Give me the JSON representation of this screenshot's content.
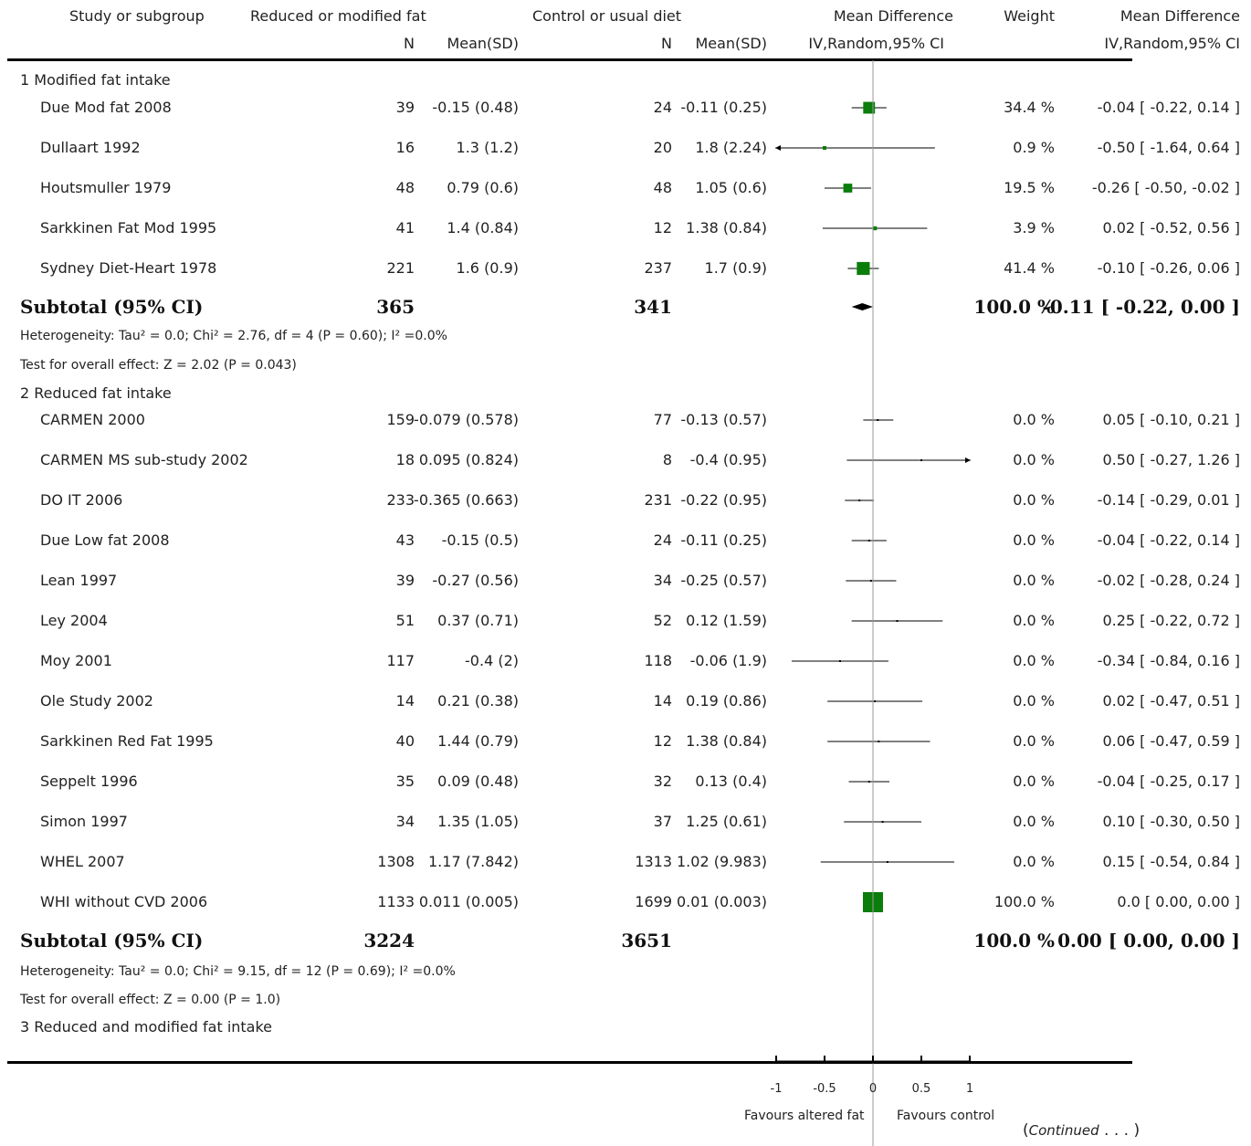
{
  "headers": {
    "study": "Study or subgroup",
    "treatment": "Reduced or modified fat",
    "control": "Control or usual diet",
    "md_plot": "Mean Difference",
    "weight": "Weight",
    "md_text": "Mean Difference",
    "n1": "N",
    "mean1": "Mean(SD)",
    "n2": "N",
    "mean2": "Mean(SD)",
    "method_plot": "IV,Random,95% CI",
    "method_text": "IV,Random,95% CI"
  },
  "groups": [
    {
      "title": "1 Modified fat intake",
      "studies": [
        {
          "name": "Due Mod fat 2008",
          "n1": "39",
          "m1": "-0.15 (0.48)",
          "n2": "24",
          "m2": "-0.11 (0.25)",
          "weight": "34.4 %",
          "ci_text": "-0.04 [ -0.22, 0.14 ]"
        },
        {
          "name": "Dullaart 1992",
          "n1": "16",
          "m1": "1.3 (1.2)",
          "n2": "20",
          "m2": "1.8 (2.24)",
          "weight": "0.9 %",
          "ci_text": "-0.50 [ -1.64, 0.64 ]"
        },
        {
          "name": "Houtsmuller 1979",
          "n1": "48",
          "m1": "0.79 (0.6)",
          "n2": "48",
          "m2": "1.05 (0.6)",
          "weight": "19.5 %",
          "ci_text": "-0.26 [ -0.50, -0.02 ]"
        },
        {
          "name": "Sarkkinen Fat Mod 1995",
          "n1": "41",
          "m1": "1.4 (0.84)",
          "n2": "12",
          "m2": "1.38 (0.84)",
          "weight": "3.9 %",
          "ci_text": "0.02 [ -0.52, 0.56 ]"
        },
        {
          "name": "Sydney Diet-Heart 1978",
          "n1": "221",
          "m1": "1.6 (0.9)",
          "n2": "237",
          "m2": "1.7 (0.9)",
          "weight": "41.4 %",
          "ci_text": "-0.10 [ -0.26, 0.06 ]"
        }
      ],
      "subtotal": {
        "label": "Subtotal (95% CI)",
        "n1": "365",
        "n2": "341",
        "weight": "100.0 %",
        "ci_text": "-0.11 [ -0.22, 0.00 ]"
      },
      "heterogeneity": "Heterogeneity: Tau² = 0.0; Chi² = 2.76, df = 4 (P = 0.60); I² =0.0%",
      "overall": "Test for overall effect: Z = 2.02 (P = 0.043)"
    },
    {
      "title": "2 Reduced fat intake",
      "studies": [
        {
          "name": "CARMEN 2000",
          "n1": "159",
          "m1": "-0.079 (0.578)",
          "n2": "77",
          "m2": "-0.13 (0.57)",
          "weight": "0.0 %",
          "ci_text": "0.05 [ -0.10, 0.21 ]"
        },
        {
          "name": "CARMEN MS sub-study 2002",
          "n1": "18",
          "m1": "0.095 (0.824)",
          "n2": "8",
          "m2": "-0.4 (0.95)",
          "weight": "0.0 %",
          "ci_text": "0.50 [ -0.27, 1.26 ]"
        },
        {
          "name": "DO IT 2006",
          "n1": "233",
          "m1": "-0.365 (0.663)",
          "n2": "231",
          "m2": "-0.22 (0.95)",
          "weight": "0.0 %",
          "ci_text": "-0.14 [ -0.29, 0.01 ]"
        },
        {
          "name": "Due Low fat 2008",
          "n1": "43",
          "m1": "-0.15 (0.5)",
          "n2": "24",
          "m2": "-0.11 (0.25)",
          "weight": "0.0 %",
          "ci_text": "-0.04 [ -0.22, 0.14 ]"
        },
        {
          "name": "Lean 1997",
          "n1": "39",
          "m1": "-0.27 (0.56)",
          "n2": "34",
          "m2": "-0.25 (0.57)",
          "weight": "0.0 %",
          "ci_text": "-0.02 [ -0.28, 0.24 ]"
        },
        {
          "name": "Ley 2004",
          "n1": "51",
          "m1": "0.37 (0.71)",
          "n2": "52",
          "m2": "0.12 (1.59)",
          "weight": "0.0 %",
          "ci_text": "0.25 [ -0.22, 0.72 ]"
        },
        {
          "name": "Moy 2001",
          "n1": "117",
          "m1": "-0.4 (2)",
          "n2": "118",
          "m2": "-0.06 (1.9)",
          "weight": "0.0 %",
          "ci_text": "-0.34 [ -0.84, 0.16 ]"
        },
        {
          "name": "Ole Study 2002",
          "n1": "14",
          "m1": "0.21 (0.38)",
          "n2": "14",
          "m2": "0.19 (0.86)",
          "weight": "0.0 %",
          "ci_text": "0.02 [ -0.47, 0.51 ]"
        },
        {
          "name": "Sarkkinen Red Fat 1995",
          "n1": "40",
          "m1": "1.44 (0.79)",
          "n2": "12",
          "m2": "1.38 (0.84)",
          "weight": "0.0 %",
          "ci_text": "0.06 [ -0.47, 0.59 ]"
        },
        {
          "name": "Seppelt 1996",
          "n1": "35",
          "m1": "0.09 (0.48)",
          "n2": "32",
          "m2": "0.13 (0.4)",
          "weight": "0.0 %",
          "ci_text": "-0.04 [ -0.25, 0.17 ]"
        },
        {
          "name": "Simon 1997",
          "n1": "34",
          "m1": "1.35 (1.05)",
          "n2": "37",
          "m2": "1.25 (0.61)",
          "weight": "0.0 %",
          "ci_text": "0.10 [ -0.30, 0.50 ]"
        },
        {
          "name": "WHEL 2007",
          "n1": "1308",
          "m1": "1.17 (7.842)",
          "n2": "1313",
          "m2": "1.02 (9.983)",
          "weight": "0.0 %",
          "ci_text": "0.15 [ -0.54, 0.84 ]"
        },
        {
          "name": "WHI without CVD 2006",
          "n1": "1133",
          "m1": "0.011 (0.005)",
          "n2": "1699",
          "m2": "0.01 (0.003)",
          "weight": "100.0 %",
          "ci_text": "0.0 [ 0.00, 0.00 ]"
        }
      ],
      "subtotal": {
        "label": "Subtotal (95% CI)",
        "n1": "3224",
        "n2": "3651",
        "weight": "100.0 %",
        "ci_text": "0.00 [ 0.00, 0.00 ]"
      },
      "heterogeneity": "Heterogeneity: Tau² = 0.0; Chi² = 9.15, df = 12 (P = 0.69); I² =0.0%",
      "overall": "Test for overall effect: Z = 0.00 (P = 1.0)"
    },
    {
      "title": "3 Reduced and modified fat intake",
      "studies": []
    }
  ],
  "axis": {
    "ticks": [
      "-1",
      "-0.5",
      "0",
      "0.5",
      "1"
    ],
    "left_label": "Favours altered fat",
    "right_label": "Favours control"
  },
  "continued": {
    "open": "(",
    "word": "Continued",
    "dots": " . . . )"
  },
  "colors": {
    "box": "#0a7d0a",
    "diamond": "#000000",
    "line": "#000000",
    "zero_line": "#999999"
  },
  "chart_data": {
    "type": "forest",
    "xlim": [
      -1,
      1
    ],
    "xticks": [
      -1,
      -0.5,
      0,
      0.5,
      1
    ],
    "series": [
      {
        "name": "1 Modified fat intake",
        "points": [
          {
            "study": "Due Mod fat 2008",
            "md": -0.04,
            "lo": -0.22,
            "hi": 0.14,
            "weight": 34.4
          },
          {
            "study": "Dullaart 1992",
            "md": -0.5,
            "lo": -1.64,
            "hi": 0.64,
            "weight": 0.9
          },
          {
            "study": "Houtsmuller 1979",
            "md": -0.26,
            "lo": -0.5,
            "hi": -0.02,
            "weight": 19.5
          },
          {
            "study": "Sarkkinen Fat Mod 1995",
            "md": 0.02,
            "lo": -0.52,
            "hi": 0.56,
            "weight": 3.9
          },
          {
            "study": "Sydney Diet-Heart 1978",
            "md": -0.1,
            "lo": -0.26,
            "hi": 0.06,
            "weight": 41.4
          }
        ],
        "subtotal": {
          "md": -0.11,
          "lo": -0.22,
          "hi": 0.0,
          "weight": 100.0
        }
      },
      {
        "name": "2 Reduced fat intake",
        "points": [
          {
            "study": "CARMEN 2000",
            "md": 0.05,
            "lo": -0.1,
            "hi": 0.21,
            "weight": 0.0
          },
          {
            "study": "CARMEN MS sub-study 2002",
            "md": 0.5,
            "lo": -0.27,
            "hi": 1.26,
            "weight": 0.0
          },
          {
            "study": "DO IT 2006",
            "md": -0.14,
            "lo": -0.29,
            "hi": 0.01,
            "weight": 0.0
          },
          {
            "study": "Due Low fat 2008",
            "md": -0.04,
            "lo": -0.22,
            "hi": 0.14,
            "weight": 0.0
          },
          {
            "study": "Lean 1997",
            "md": -0.02,
            "lo": -0.28,
            "hi": 0.24,
            "weight": 0.0
          },
          {
            "study": "Ley 2004",
            "md": 0.25,
            "lo": -0.22,
            "hi": 0.72,
            "weight": 0.0
          },
          {
            "study": "Moy 2001",
            "md": -0.34,
            "lo": -0.84,
            "hi": 0.16,
            "weight": 0.0
          },
          {
            "study": "Ole Study 2002",
            "md": 0.02,
            "lo": -0.47,
            "hi": 0.51,
            "weight": 0.0
          },
          {
            "study": "Sarkkinen Red Fat 1995",
            "md": 0.06,
            "lo": -0.47,
            "hi": 0.59,
            "weight": 0.0
          },
          {
            "study": "Seppelt 1996",
            "md": -0.04,
            "lo": -0.25,
            "hi": 0.17,
            "weight": 0.0
          },
          {
            "study": "Simon 1997",
            "md": 0.1,
            "lo": -0.3,
            "hi": 0.5,
            "weight": 0.0
          },
          {
            "study": "WHEL 2007",
            "md": 0.15,
            "lo": -0.54,
            "hi": 0.84,
            "weight": 0.0
          },
          {
            "study": "WHI without CVD 2006",
            "md": 0.0,
            "lo": 0.0,
            "hi": 0.0,
            "weight": 100.0
          }
        ],
        "subtotal": {
          "md": 0.0,
          "lo": 0.0,
          "hi": 0.0,
          "weight": 100.0
        }
      }
    ]
  }
}
